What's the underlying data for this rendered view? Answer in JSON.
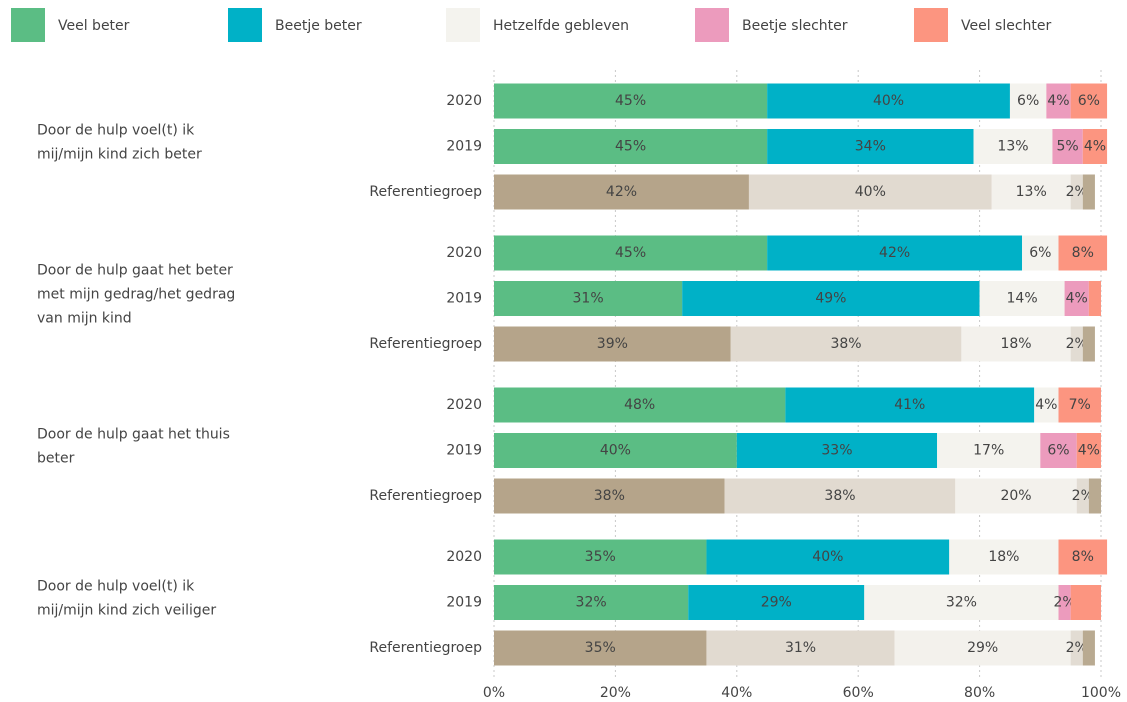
{
  "chart_data": {
    "type": "stacked-barh",
    "categories": [
      "2020",
      "2019",
      "Referentiegroep",
      "2020",
      "2019",
      "Referentiegroep",
      "2020",
      "2019",
      "Referentiegroep",
      "2020",
      "2019",
      "Referentiegroep"
    ],
    "group_labels": [
      [
        "Door de hulp voel(t) ik",
        "mij/mijn kind zich beter"
      ],
      [
        "Door de hulp gaat het beter",
        "met mijn gedrag/het gedrag",
        "van mijn kind"
      ],
      [
        "Door de hulp gaat het thuis",
        "beter"
      ],
      [
        "Door de hulp voel(t) ik",
        "mij/mijn kind zich veiliger"
      ]
    ],
    "reference_category": "Referentiegroep",
    "reference_colors": [
      "#b5a48a",
      "#e1dad0",
      "#f3f1ec",
      "#e2dcd3",
      "#b9aa91"
    ],
    "series": [
      {
        "name": "Veel beter",
        "color": "#5bbd84",
        "values": [
          45,
          45,
          42,
          45,
          31,
          39,
          48,
          40,
          38,
          35,
          32,
          35
        ],
        "value_labels": [
          "45%",
          "45%",
          "42%",
          "45%",
          "31%",
          "39%",
          "48%",
          "40%",
          "38%",
          "35%",
          "32%",
          "35%"
        ]
      },
      {
        "name": "Beetje beter",
        "color": "#00b1c7",
        "values": [
          40,
          34,
          40,
          42,
          49,
          38,
          41,
          33,
          38,
          40,
          29,
          31
        ],
        "value_labels": [
          "40%",
          "34%",
          "40%",
          "42%",
          "49%",
          "38%",
          "41%",
          "33%",
          "38%",
          "40%",
          "29%",
          "31%"
        ]
      },
      {
        "name": "Hetzelfde gebleven",
        "color": "#f4f3ee",
        "values": [
          6,
          13,
          13,
          6,
          14,
          18,
          4,
          17,
          20,
          18,
          32,
          29
        ],
        "value_labels": [
          "6%",
          "13%",
          "13%",
          "6%",
          "14%",
          "18%",
          "4%",
          "17%",
          "20%",
          "18%",
          "32%",
          "29%"
        ]
      },
      {
        "name": "Beetje slechter",
        "color": "#ec9bbd",
        "values": [
          4,
          5,
          2,
          0,
          4,
          2,
          0,
          6,
          2,
          0,
          2,
          2
        ],
        "value_labels": [
          "4%",
          "5%",
          "2%",
          null,
          "4%",
          "2%",
          null,
          "6%",
          "2%",
          null,
          "2%",
          "2%"
        ]
      },
      {
        "name": "Veel slechter",
        "color": "#fc9580",
        "values": [
          6,
          4,
          2,
          8,
          2,
          2,
          7,
          4,
          2,
          8,
          5,
          2
        ],
        "value_labels": [
          "6%",
          "4%",
          null,
          "8%",
          null,
          null,
          "7%",
          "4%",
          null,
          "8%",
          null,
          null
        ]
      }
    ],
    "xlim": [
      0,
      100
    ],
    "xticks": [
      {
        "value": 0,
        "label": "0%"
      },
      {
        "value": 20,
        "label": "20%"
      },
      {
        "value": 40,
        "label": "40%"
      },
      {
        "value": 60,
        "label": "60%"
      },
      {
        "value": 80,
        "label": "80%"
      },
      {
        "value": 100,
        "label": "100%"
      }
    ],
    "grid": true
  }
}
